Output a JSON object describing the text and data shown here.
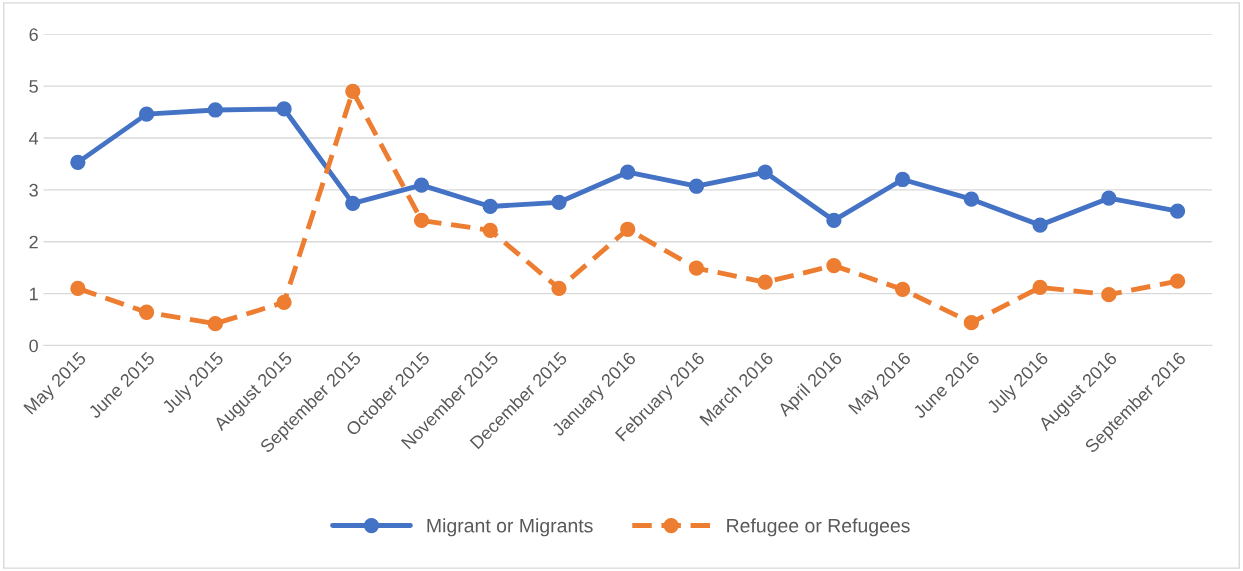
{
  "chart_data": {
    "type": "line",
    "categories": [
      "May 2015",
      "June 2015",
      "July 2015",
      "August 2015",
      "September 2015",
      "October 2015",
      "November 2015",
      "December 2015",
      "January 2016",
      "February 2016",
      "March 2016",
      "April 2016",
      "May 2016",
      "June 2016",
      "July 2016",
      "August 2016",
      "September 2016"
    ],
    "series": [
      {
        "name": "Migrant or Migrants",
        "color": "#4472c4",
        "line_style": "solid",
        "values": [
          3.53,
          4.46,
          4.54,
          4.56,
          2.74,
          3.09,
          2.68,
          2.76,
          3.34,
          3.07,
          3.34,
          2.41,
          3.2,
          2.82,
          2.32,
          2.84,
          2.59
        ]
      },
      {
        "name": "Refugee or Refugees",
        "color": "#ed7d31",
        "line_style": "dashed",
        "values": [
          1.1,
          0.64,
          0.42,
          0.83,
          4.9,
          2.41,
          2.22,
          1.1,
          2.24,
          1.49,
          1.22,
          1.54,
          1.08,
          0.44,
          1.12,
          0.98,
          1.24
        ]
      }
    ],
    "ylim": [
      0,
      6
    ],
    "yticks": [
      0,
      1,
      2,
      3,
      4,
      5,
      6
    ],
    "grid": "y",
    "legend": "bottom",
    "marker": "circle"
  }
}
